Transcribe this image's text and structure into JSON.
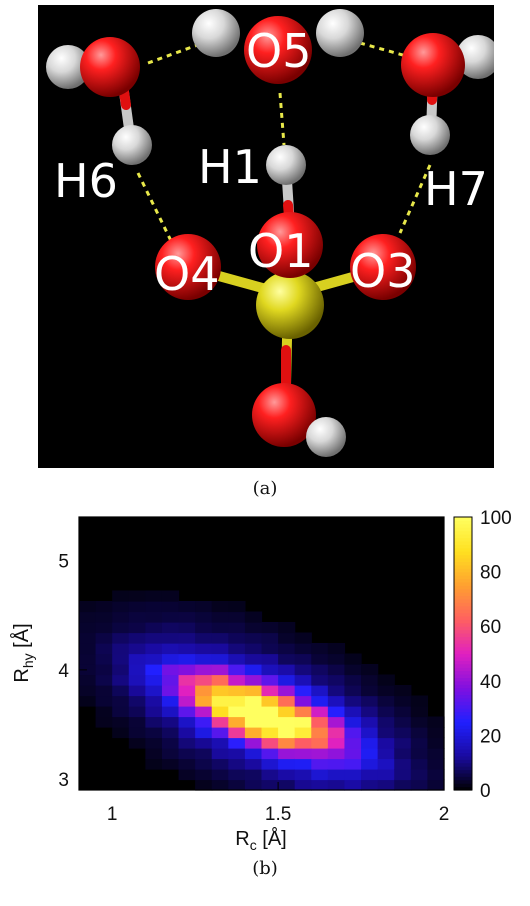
{
  "panel_a": {
    "caption": "(a)",
    "atom_labels": {
      "O5": "O5",
      "H1": "H1",
      "H6": "H6",
      "H7": "H7",
      "O4": "O4",
      "O1": "O1",
      "O3": "O3"
    },
    "colors": {
      "oxygen": "#e01010",
      "hydrogen": "#e6e6e6",
      "sulfur": "#d8d020",
      "hbond": "#e8e84a",
      "background": "#000000"
    }
  },
  "panel_b": {
    "caption": "(b)",
    "chart_data": {
      "type": "heatmap",
      "title": "",
      "xlabel_main": "R",
      "xlabel_sub": "c",
      "xlabel_unit": " [Å]",
      "ylabel_main": "R",
      "ylabel_sub": "hy",
      "ylabel_unit": " [Å]",
      "xlim": [
        0.9,
        2.0
      ],
      "ylim": [
        2.9,
        5.4
      ],
      "x_ticks": [
        1,
        1.5,
        2
      ],
      "x_tick_labels": [
        "1",
        "1.5",
        "2"
      ],
      "y_ticks": [
        3,
        4,
        5
      ],
      "y_tick_labels": [
        "3",
        "4",
        "5"
      ],
      "colorbar": {
        "range": [
          0,
          100
        ],
        "ticks": [
          0,
          20,
          40,
          60,
          80,
          100
        ],
        "tick_labels": [
          "0",
          "20",
          "40",
          "60",
          "80",
          "100"
        ],
        "palette": [
          "#000000",
          "#1a0aa0",
          "#2020ff",
          "#8010e0",
          "#e020c0",
          "#ff6060",
          "#ffa030",
          "#ffe020",
          "#ffff60"
        ]
      },
      "density_peak": {
        "x": 1.45,
        "y": 3.6,
        "value": 100
      },
      "density_trend": "decreasing R_hy with increasing R_c"
    }
  }
}
